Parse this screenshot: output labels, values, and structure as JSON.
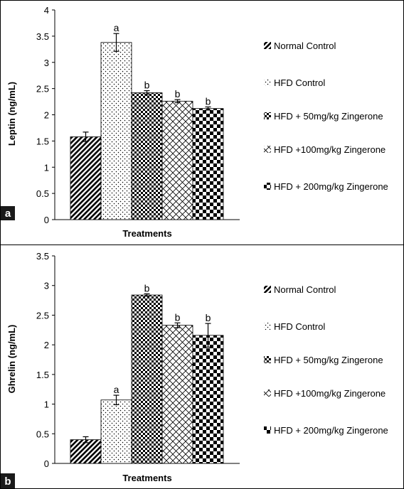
{
  "panel_labels": [
    "a",
    "b"
  ],
  "chart_data": [
    {
      "type": "bar",
      "panel": "a",
      "title": "",
      "xlabel": "Treatments",
      "ylabel": "Leptin (ng/mL)",
      "ylim": [
        0,
        4
      ],
      "yticks": [
        "0",
        "0.5",
        "1",
        "1.5",
        "2",
        "2.5",
        "3",
        "3.5",
        "4"
      ],
      "grid": false,
      "legend_position": "right",
      "series": [
        {
          "name": "Normal Control",
          "value": 1.58,
          "error": 0.09,
          "sig": "",
          "pattern": "diag"
        },
        {
          "name": "HFD Control",
          "value": 3.38,
          "error": 0.17,
          "sig": "a",
          "pattern": "dots"
        },
        {
          "name": "HFD + 50mg/kg Zingerone",
          "value": 2.42,
          "error": 0.04,
          "sig": "b",
          "pattern": "checker-small"
        },
        {
          "name": "HFD +100mg/kg Zingerone",
          "value": 2.26,
          "error": 0.03,
          "sig": "b",
          "pattern": "crosshatch"
        },
        {
          "name": "HFD + 200mg/kg Zingerone",
          "value": 2.12,
          "error": 0.03,
          "sig": "b",
          "pattern": "checker-large"
        }
      ]
    },
    {
      "type": "bar",
      "panel": "b",
      "title": "",
      "xlabel": "Treatments",
      "ylabel": "Ghrelin (ng/mL)",
      "ylim": [
        0,
        3.5
      ],
      "yticks": [
        "0",
        "0.5",
        "1",
        "1.5",
        "2",
        "2.5",
        "3",
        "3.5"
      ],
      "grid": false,
      "legend_position": "right",
      "series": [
        {
          "name": "Normal Control",
          "value": 0.4,
          "error": 0.05,
          "sig": "",
          "pattern": "diag"
        },
        {
          "name": "HFD Control",
          "value": 1.07,
          "error": 0.08,
          "sig": "a",
          "pattern": "dots"
        },
        {
          "name": "HFD + 50mg/kg Zingerone",
          "value": 2.84,
          "error": 0.02,
          "sig": "b",
          "pattern": "checker-small"
        },
        {
          "name": "HFD +100mg/kg Zingerone",
          "value": 2.33,
          "error": 0.04,
          "sig": "b",
          "pattern": "crosshatch"
        },
        {
          "name": "HFD + 200mg/kg Zingerone",
          "value": 2.16,
          "error": 0.2,
          "sig": "b",
          "pattern": "checker-large"
        }
      ]
    }
  ]
}
